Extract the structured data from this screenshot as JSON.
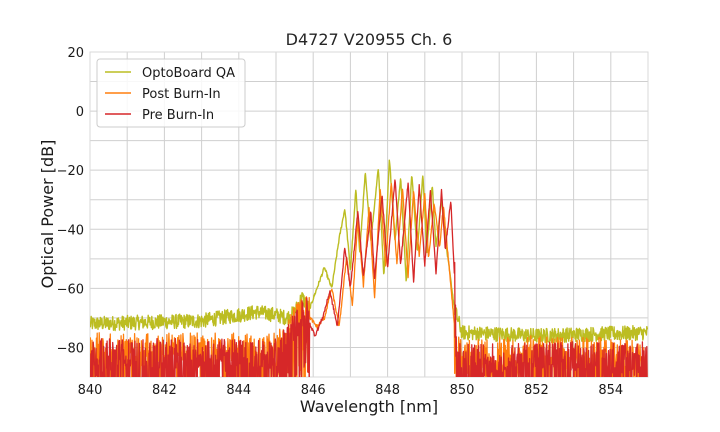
{
  "chart_data": {
    "type": "line",
    "title": "D4727 V20955 Ch. 6",
    "xlabel": "Wavelength [nm]",
    "ylabel": "Optical Power [dB]",
    "xlim": [
      840,
      855
    ],
    "ylim": [
      -90,
      20
    ],
    "x_ticks": [
      840,
      842,
      844,
      846,
      848,
      850,
      852,
      854
    ],
    "y_ticks": [
      20,
      0,
      -20,
      -40,
      -60,
      -80
    ],
    "x_tick_labels": [
      "840",
      "842",
      "844",
      "846",
      "848",
      "850",
      "852",
      "854"
    ],
    "y_tick_labels": [
      "20",
      "0",
      "−20",
      "−40",
      "−60",
      "−80"
    ],
    "grid": true,
    "legend_position": "top-left",
    "series": [
      {
        "name": "OptoBoard QA",
        "color": "#bcbd22",
        "x": [
          840.0,
          843.0,
          844.5,
          845.0,
          845.3,
          845.5,
          845.7,
          845.9,
          846.1,
          846.3,
          846.5,
          846.7,
          846.85,
          847.0,
          847.15,
          847.25,
          847.4,
          847.55,
          847.75,
          847.9,
          848.05,
          848.2,
          848.35,
          848.5,
          848.65,
          848.8,
          848.95,
          849.05,
          849.2,
          849.3,
          849.45,
          849.6,
          849.8,
          850.0,
          852.0,
          855.0
        ],
        "y": [
          -72,
          -71,
          -68,
          -69,
          -70,
          -68,
          -63,
          -67,
          -60,
          -53,
          -60,
          -43,
          -33,
          -54,
          -26,
          -48,
          -21,
          -44,
          -19,
          -56,
          -16,
          -44,
          -22,
          -58,
          -21,
          -48,
          -21,
          -48,
          -25,
          -46,
          -30,
          -48,
          -67,
          -75,
          -76,
          -75
        ]
      },
      {
        "name": "Post Burn-In",
        "color": "#ff7f0e",
        "x": [
          840.0,
          845.0,
          845.8,
          846.1,
          846.3,
          846.5,
          846.7,
          846.9,
          847.05,
          847.2,
          847.35,
          847.5,
          847.65,
          847.8,
          847.95,
          848.1,
          848.25,
          848.4,
          848.55,
          848.7,
          848.85,
          849.0,
          849.1,
          849.25,
          849.4,
          849.5,
          849.65,
          849.85,
          850.0,
          852.0,
          855.0
        ],
        "y": [
          -82,
          -82,
          -68,
          -73,
          -70,
          -60,
          -73,
          -49,
          -66,
          -37,
          -59,
          -33,
          -63,
          -26,
          -52,
          -24,
          -52,
          -26,
          -56,
          -27,
          -49,
          -28,
          -50,
          -31,
          -46,
          -32,
          -52,
          -80,
          -84,
          -83,
          -84
        ]
      },
      {
        "name": "Pre Burn-In",
        "color": "#d62728",
        "x": [
          840.0,
          845.0,
          845.8,
          846.05,
          846.25,
          846.45,
          846.65,
          846.85,
          847.0,
          847.2,
          847.35,
          847.55,
          847.65,
          847.85,
          848.0,
          848.2,
          848.35,
          848.55,
          848.7,
          848.85,
          849.0,
          849.15,
          849.3,
          849.45,
          849.55,
          849.7,
          849.9,
          850.0,
          852.0,
          855.0
        ],
        "y": [
          -84,
          -84,
          -69,
          -76,
          -70,
          -61,
          -73,
          -46,
          -60,
          -34,
          -56,
          -34,
          -57,
          -28,
          -53,
          -23,
          -52,
          -24,
          -58,
          -25,
          -52,
          -27,
          -55,
          -27,
          -47,
          -30,
          -83,
          -86,
          -85,
          -85
        ]
      }
    ]
  }
}
